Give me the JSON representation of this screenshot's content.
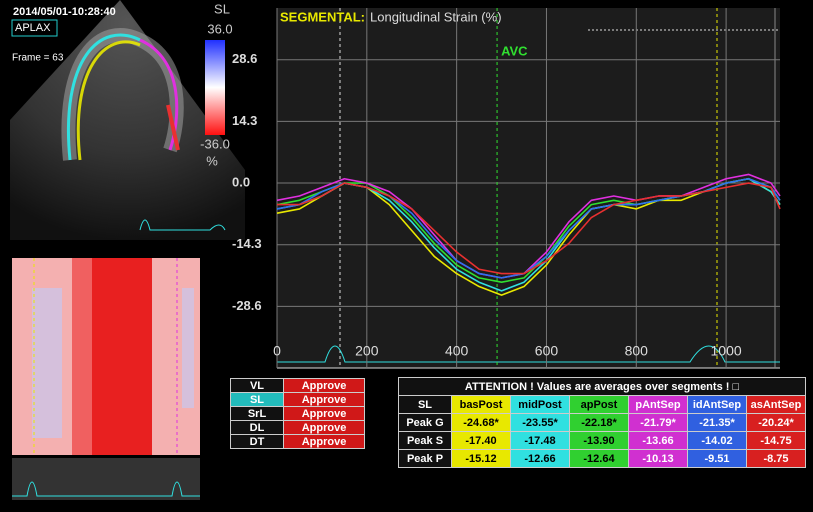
{
  "image_panel": {
    "timestamp": "2014/05/01-10:28:40",
    "view": "APLAX",
    "frame": "Frame = 63",
    "mode": "SL",
    "scale_max": "36.0",
    "scale_min": "-36.0",
    "unit": "%"
  },
  "chart_data": {
    "type": "line",
    "title": "SEGMENTAL:",
    "subtitle": "Longitudinal Strain (%)",
    "annotation": {
      "text": "AVC",
      "x": 490
    },
    "x": [
      0,
      50,
      100,
      150,
      200,
      250,
      300,
      350,
      400,
      450,
      500,
      550,
      600,
      650,
      700,
      750,
      800,
      850,
      900,
      950,
      1000,
      1050,
      1100,
      1120
    ],
    "series": [
      {
        "color": "#e8e800",
        "values": [
          -7,
          -6,
          -3,
          0,
          -1,
          -5,
          -11,
          -17,
          -21,
          -24,
          -26,
          -24,
          -19,
          -12,
          -6,
          -5,
          -6,
          -4,
          -4,
          -2,
          0,
          1,
          -2,
          -5
        ]
      },
      {
        "color": "#30e0e0",
        "values": [
          -6,
          -5,
          -3,
          0,
          -1,
          -4,
          -9,
          -15,
          -20,
          -23,
          -25,
          -23,
          -18,
          -11,
          -6,
          -5,
          -5,
          -4,
          -3,
          -2,
          0,
          1,
          -2,
          -5
        ]
      },
      {
        "color": "#30e030",
        "values": [
          -5,
          -4,
          -2,
          0,
          0,
          -3,
          -8,
          -14,
          -19,
          -22,
          -23,
          -22,
          -17,
          -10,
          -5,
          -4,
          -5,
          -4,
          -3,
          -2,
          0,
          1,
          -1,
          -4
        ]
      },
      {
        "color": "#e030e0",
        "values": [
          -4,
          -3,
          -1,
          1,
          0,
          -2,
          -6,
          -12,
          -18,
          -21,
          -22,
          -21,
          -16,
          -9,
          -4,
          -3,
          -4,
          -3,
          -3,
          -1,
          1,
          2,
          0,
          -3
        ]
      },
      {
        "color": "#3070f0",
        "values": [
          -6,
          -5,
          -2,
          0,
          -1,
          -3,
          -7,
          -13,
          -18,
          -21,
          -22,
          -21,
          -17,
          -11,
          -6,
          -5,
          -5,
          -4,
          -3,
          -2,
          0,
          1,
          -1,
          -4
        ]
      },
      {
        "color": "#e83030",
        "values": [
          -5,
          -5,
          -3,
          0,
          -1,
          -3,
          -6,
          -11,
          -16,
          -20,
          -21,
          -21,
          -18,
          -14,
          -8,
          -5,
          -4,
          -3,
          -3,
          -2,
          -1,
          0,
          -1,
          -6
        ]
      }
    ],
    "xlim": [
      0,
      1120
    ],
    "ylim": [
      -42.9,
      40.6
    ],
    "xticks": [
      0,
      200,
      400,
      600,
      800,
      1000
    ],
    "yticks": [
      28.6,
      14.3,
      {
        "value": 0,
        "label": "0.0"
      },
      -14.3,
      -28.6
    ],
    "grid": true
  },
  "modes": [
    {
      "label": "VL",
      "action": "Approve"
    },
    {
      "label": "SL",
      "action": "Approve"
    },
    {
      "label": "SrL",
      "action": "Approve"
    },
    {
      "label": "DL",
      "action": "Approve"
    },
    {
      "label": "DT",
      "action": "Approve"
    }
  ],
  "table": {
    "notice": "ATTENTION !  Values are averages over segments ! □",
    "header": [
      "SL",
      "basPost",
      "midPost",
      "apPost",
      "pAntSep",
      "idAntSep",
      "asAntSep"
    ],
    "rows": [
      [
        "Peak G",
        "-24.68*",
        "-23.55*",
        "-22.18*",
        "-21.79*",
        "-21.35*",
        "-20.24*"
      ],
      [
        "Peak S",
        "-17.40",
        "-17.48",
        "-13.90",
        "-13.66",
        "-14.02",
        "-14.75"
      ],
      [
        "Peak P",
        "-15.12",
        "-12.66",
        "-12.64",
        "-10.13",
        "-9.51",
        "-8.75"
      ]
    ]
  }
}
